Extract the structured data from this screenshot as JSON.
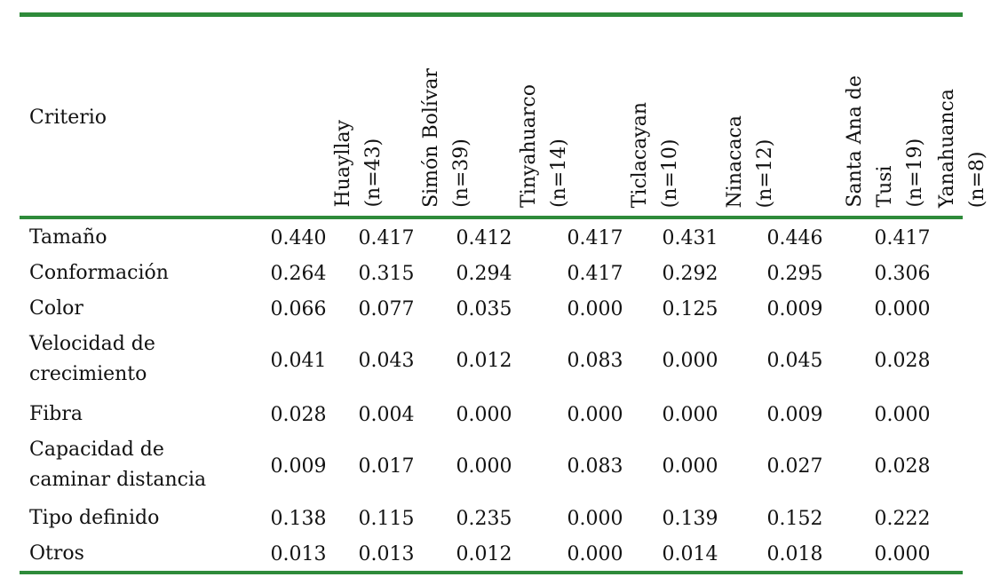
{
  "table": {
    "header": {
      "criterio": "Criterio",
      "columns": [
        {
          "name": "Huayllay",
          "n": "(n=43)"
        },
        {
          "name": "Simón Bolívar",
          "n": "(n=39)"
        },
        {
          "name": "Tinyahuarco",
          "n": "(n=14)"
        },
        {
          "name": "Ticlacayan",
          "n": "(n=10)"
        },
        {
          "name": "Ninacaca",
          "n": "(n=12)"
        },
        {
          "name": "Santa Ana de",
          "name2": "Tusi",
          "n": "(n=19)"
        },
        {
          "name": "Yanahuanca",
          "n": "(n=8)"
        }
      ]
    },
    "rows": [
      {
        "label": "Tamaño",
        "values": [
          "0.440",
          "0.417",
          "0.412",
          "0.417",
          "0.431",
          "0.446",
          "0.417"
        ]
      },
      {
        "label": "Conformación",
        "values": [
          "0.264",
          "0.315",
          "0.294",
          "0.417",
          "0.292",
          "0.295",
          "0.306"
        ]
      },
      {
        "label": "Color",
        "values": [
          "0.066",
          "0.077",
          "0.035",
          "0.000",
          "0.125",
          "0.009",
          "0.000"
        ]
      },
      {
        "label": "Velocidad de",
        "label2": "crecimiento",
        "values": [
          "0.041",
          "0.043",
          "0.012",
          "0.083",
          "0.000",
          "0.045",
          "0.028"
        ]
      },
      {
        "label": "Fibra",
        "values": [
          "0.028",
          "0.004",
          "0.000",
          "0.000",
          "0.000",
          "0.009",
          "0.000"
        ]
      },
      {
        "label": "Capacidad de",
        "label2": "caminar distancia",
        "values": [
          "0.009",
          "0.017",
          "0.000",
          "0.083",
          "0.000",
          "0.027",
          "0.028"
        ]
      },
      {
        "label": "Tipo definido",
        "values": [
          "0.138",
          "0.115",
          "0.235",
          "0.000",
          "0.139",
          "0.152",
          "0.222"
        ]
      },
      {
        "label": "Otros",
        "values": [
          "0.013",
          "0.013",
          "0.012",
          "0.000",
          "0.014",
          "0.018",
          "0.000"
        ]
      }
    ]
  }
}
